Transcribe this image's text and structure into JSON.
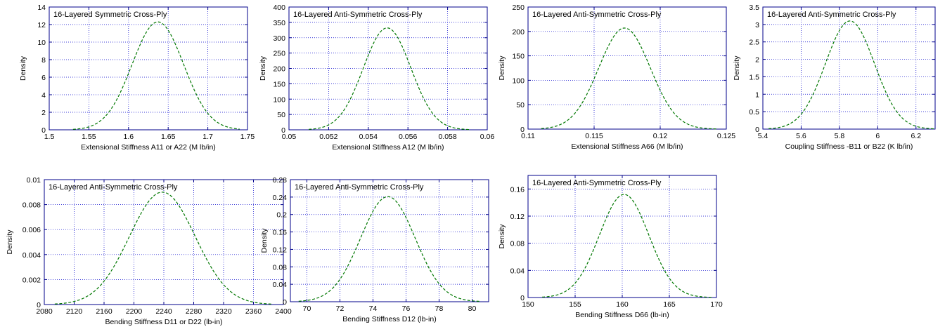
{
  "colors": {
    "curve": "#007700",
    "grid": "#0000cc",
    "frame": "#00008b",
    "text": "#000000"
  },
  "chart_data": [
    {
      "type": "line",
      "title": "16-Layered Symmetric Cross-Ply",
      "xlabel": "Extensional Stiffness A11 or A22 (M lb/in)",
      "ylabel": "Density",
      "xlim": [
        1.5,
        1.75
      ],
      "ylim": [
        0,
        14
      ],
      "xticks": [
        1.5,
        1.55,
        1.6,
        1.65,
        1.7,
        1.75
      ],
      "yticks": [
        0,
        2,
        4,
        6,
        8,
        10,
        12,
        14
      ],
      "xtick_labels": [
        "1.5",
        "1.55",
        "1.6",
        "1.65",
        "1.7",
        "1.75"
      ],
      "ytick_labels": [
        "0",
        "2",
        "4",
        "6",
        "8",
        "10",
        "12",
        "14"
      ],
      "grid": true,
      "series": [
        {
          "style": "dashed",
          "mean": 1.637,
          "sd": 0.0325,
          "peak": 12.3,
          "x_range": [
            1.53,
            1.74
          ]
        }
      ]
    },
    {
      "type": "line",
      "title": "16-Layered Anti-Symmetric Cross-Ply",
      "xlabel": "Extensional Stiffness A12 (M lb/in)",
      "ylabel": "Density",
      "xlim": [
        0.05,
        0.06
      ],
      "ylim": [
        0,
        400
      ],
      "xticks": [
        0.05,
        0.052,
        0.054,
        0.056,
        0.058,
        0.06
      ],
      "yticks": [
        0,
        50,
        100,
        150,
        200,
        250,
        300,
        350,
        400
      ],
      "xtick_labels": [
        "0.05",
        "0.052",
        "0.054",
        "0.056",
        "0.058",
        "0.06"
      ],
      "ytick_labels": [
        "0",
        "50",
        "100",
        "150",
        "200",
        "250",
        "300",
        "350",
        "400"
      ],
      "grid": true,
      "series": [
        {
          "style": "dashed",
          "mean": 0.05495,
          "sd": 0.0012,
          "peak": 332,
          "x_range": [
            0.051,
            0.0591
          ]
        }
      ]
    },
    {
      "type": "line",
      "title": "16-Layered Anti-Symmetric Cross-Ply",
      "xlabel": "Extensional Stiffness A66 (M lb/in)",
      "ylabel": "Density",
      "xlim": [
        0.11,
        0.125
      ],
      "ylim": [
        0,
        250
      ],
      "xticks": [
        0.11,
        0.115,
        0.12,
        0.125
      ],
      "yticks": [
        0,
        50,
        100,
        150,
        200,
        250
      ],
      "xtick_labels": [
        "0.11",
        "0.115",
        "0.12",
        "0.125"
      ],
      "ytick_labels": [
        "0",
        "50",
        "100",
        "150",
        "200",
        "250"
      ],
      "grid": true,
      "series": [
        {
          "style": "dashed",
          "mean": 0.1173,
          "sd": 0.00195,
          "peak": 207,
          "x_range": [
            0.111,
            0.1243
          ]
        }
      ]
    },
    {
      "type": "line",
      "title": "16-Layered Anti-Symmetric Cross-Ply",
      "xlabel": "Coupling Stiffness -B11 or B22 (K lb/in)",
      "ylabel": "Density",
      "xlim": [
        5.4,
        6.3
      ],
      "ylim": [
        0,
        3.5
      ],
      "xticks": [
        5.4,
        5.6,
        5.8,
        6.0,
        6.2
      ],
      "yticks": [
        0,
        0.5,
        1,
        1.5,
        2,
        2.5,
        3,
        3.5
      ],
      "xtick_labels": [
        "5.4",
        "5.6",
        "5.8",
        "6",
        "6.2"
      ],
      "ytick_labels": [
        "0",
        "0.5",
        "1",
        "1.5",
        "2",
        "2.5",
        "3",
        "3.5"
      ],
      "grid": true,
      "series": [
        {
          "style": "dashed",
          "mean": 5.855,
          "sd": 0.128,
          "peak": 3.1,
          "x_range": [
            5.43,
            6.3
          ]
        }
      ]
    },
    {
      "type": "line",
      "title": "16-Layered Anti-Symmetric Cross-Ply",
      "xlabel": "Bending Stiffness D11 or D22 (lb-in)",
      "ylabel": "Density",
      "xlim": [
        2080,
        2400
      ],
      "ylim": [
        0,
        0.01
      ],
      "xticks": [
        2080,
        2120,
        2160,
        2200,
        2240,
        2280,
        2320,
        2360,
        2400
      ],
      "yticks": [
        0,
        0.002,
        0.004,
        0.006,
        0.008,
        0.01
      ],
      "xtick_labels": [
        "2080",
        "2120",
        "2160",
        "2200",
        "2240",
        "2280",
        "2320",
        "2360",
        "2400"
      ],
      "ytick_labels": [
        "0",
        "0.002",
        "0.004",
        "0.006",
        "0.008",
        "0.01"
      ],
      "grid": true,
      "series": [
        {
          "style": "dashed",
          "mean": 2238,
          "sd": 44,
          "peak": 0.009,
          "x_range": [
            2094,
            2386
          ]
        }
      ]
    },
    {
      "type": "line",
      "title": "16-Layered Anti-Symmetric Cross-Ply",
      "xlabel": "Bending Stiffness D12 (lb-in)",
      "ylabel": "Density",
      "xlim": [
        69,
        81
      ],
      "ylim": [
        0,
        0.28
      ],
      "xticks": [
        70,
        72,
        74,
        76,
        78,
        80
      ],
      "yticks": [
        0,
        0.04,
        0.08,
        0.12,
        0.16,
        0.2,
        0.24,
        0.28
      ],
      "xtick_labels": [
        "70",
        "72",
        "74",
        "76",
        "78",
        "80"
      ],
      "ytick_labels": [
        "0",
        "0.04",
        "0.08",
        "0.12",
        "0.16",
        "0.2",
        "0.24",
        "0.28"
      ],
      "grid": true,
      "series": [
        {
          "style": "dashed",
          "mean": 74.9,
          "sd": 1.65,
          "peak": 0.241,
          "x_range": [
            69.5,
            80.5
          ]
        }
      ]
    },
    {
      "type": "line",
      "title": "16-Layered Anti-Symmetric Cross-Ply",
      "xlabel": "Bending Stiffness D66 (lb-in)",
      "ylabel": "Density",
      "xlim": [
        150,
        170
      ],
      "ylim": [
        0,
        0.18
      ],
      "xticks": [
        150,
        155,
        160,
        165,
        170
      ],
      "yticks": [
        0,
        0.04,
        0.08,
        0.12,
        0.16
      ],
      "xtick_labels": [
        "150",
        "155",
        "160",
        "165",
        "170"
      ],
      "ytick_labels": [
        "0",
        "0.04",
        "0.08",
        "0.12",
        "0.16"
      ],
      "grid": true,
      "series": [
        {
          "style": "dashed",
          "mean": 160.2,
          "sd": 2.62,
          "peak": 0.152,
          "x_range": [
            151.5,
            169.5
          ]
        }
      ]
    }
  ]
}
